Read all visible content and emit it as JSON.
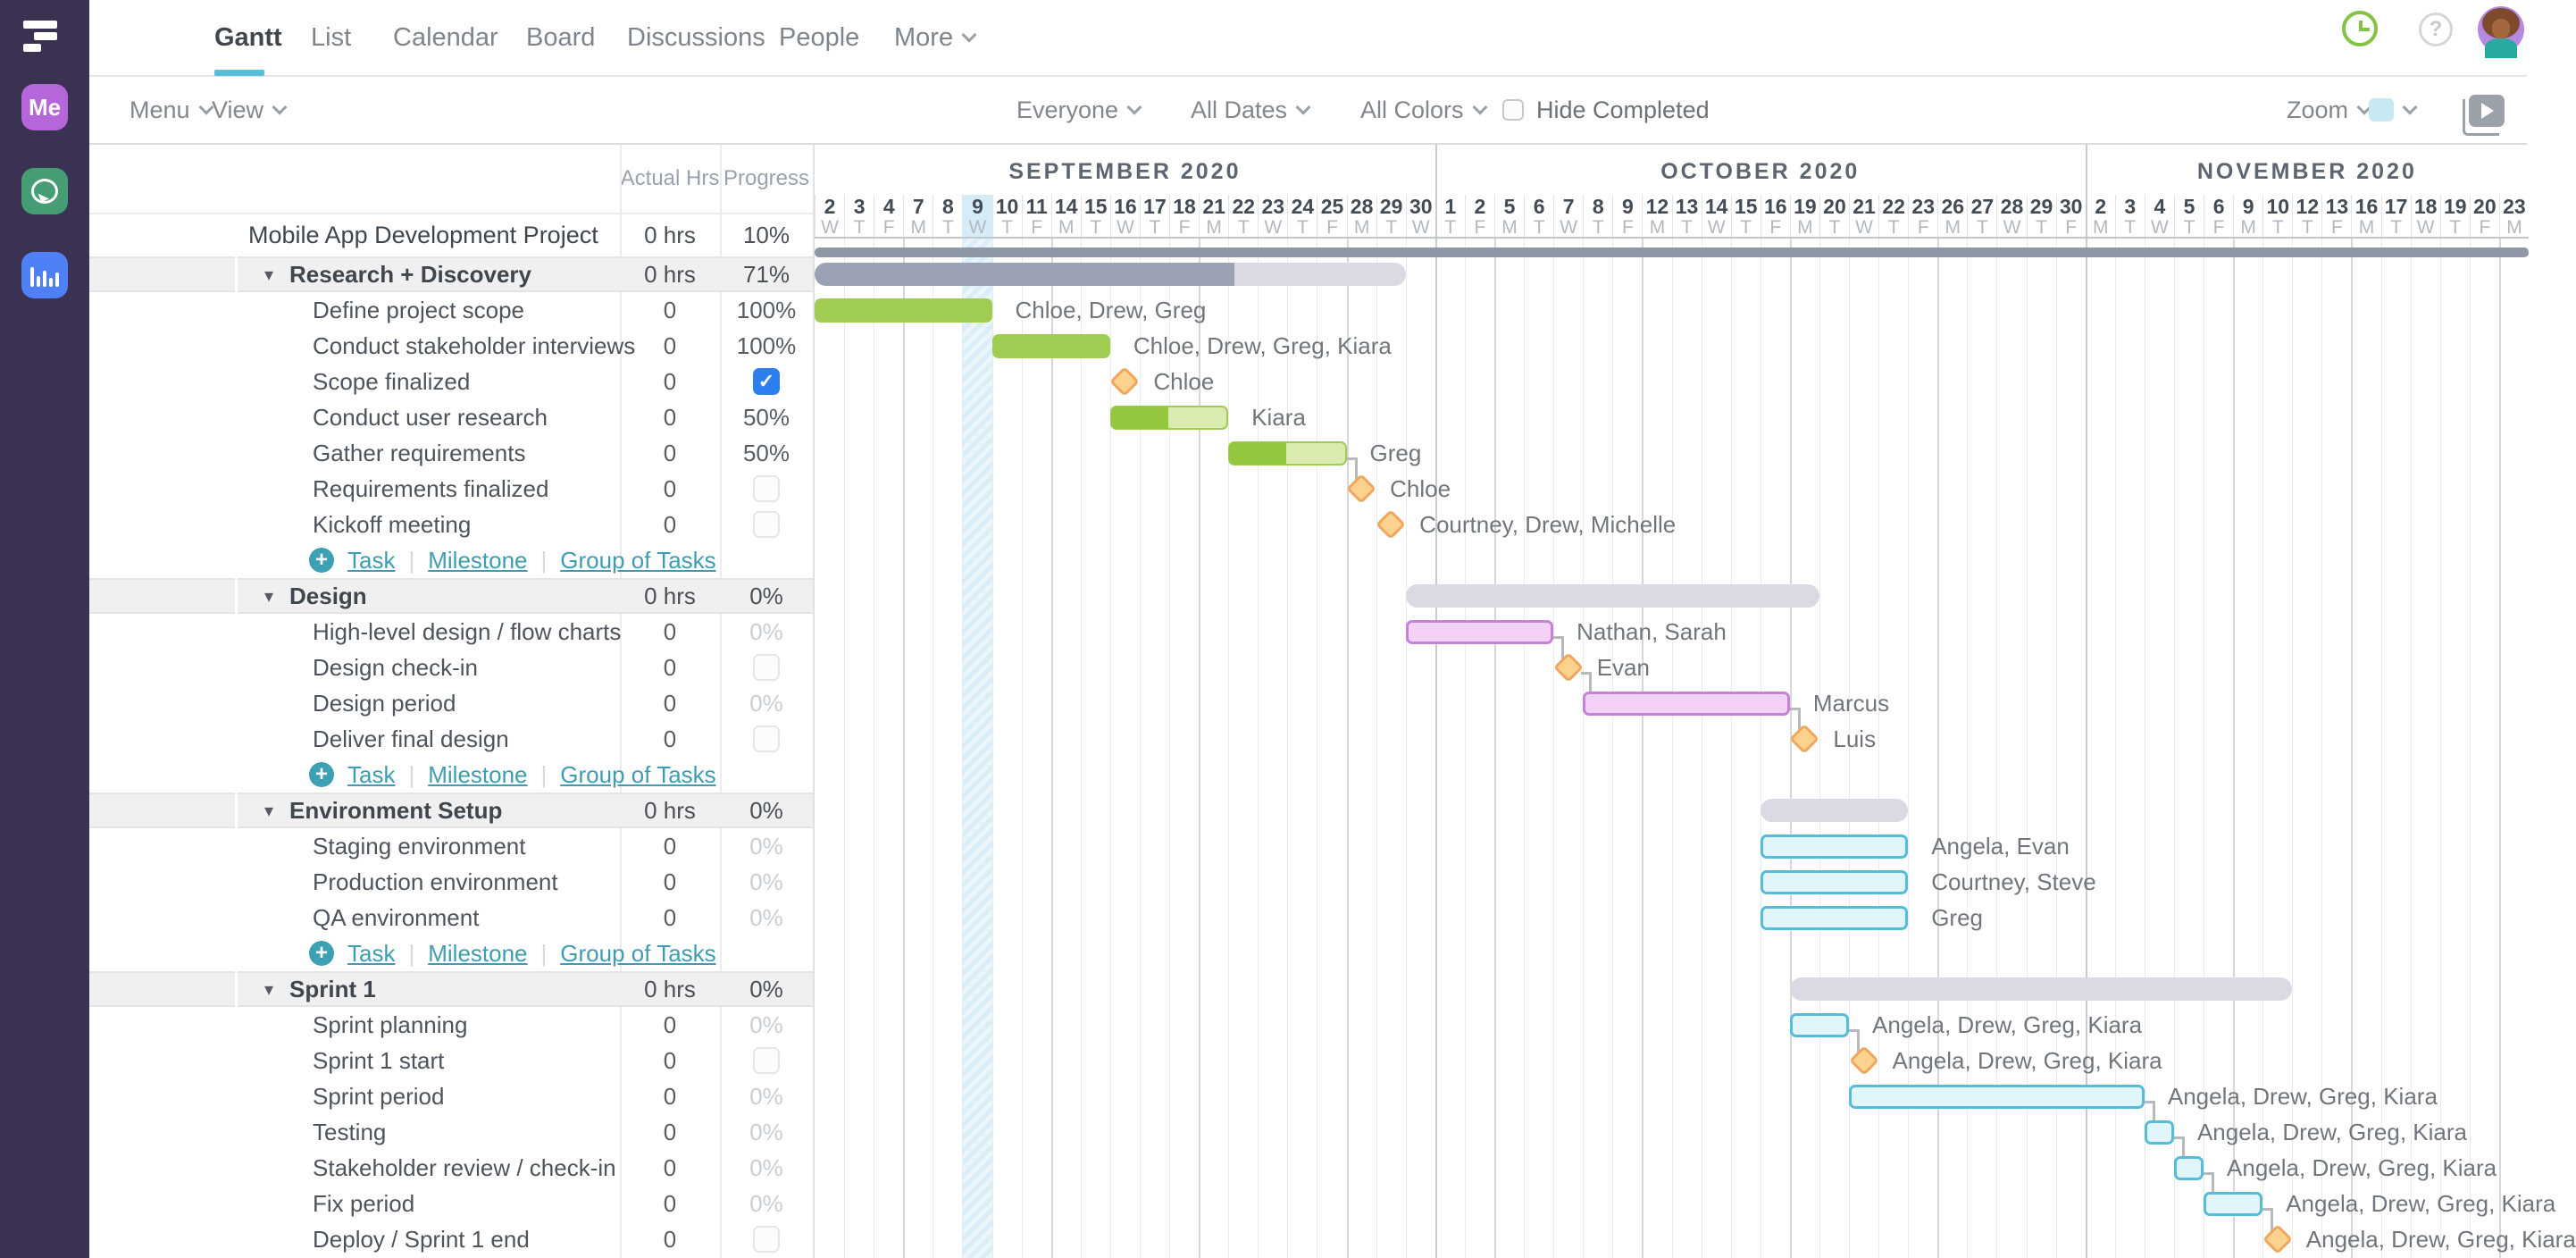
{
  "app": {
    "nav_tabs": [
      {
        "label": "Gantt",
        "active": true
      },
      {
        "label": "List",
        "active": false
      },
      {
        "label": "Calendar",
        "active": false
      },
      {
        "label": "Board",
        "active": false
      },
      {
        "label": "Discussions",
        "active": false
      },
      {
        "label": "People",
        "active": false
      },
      {
        "label": "More",
        "active": false,
        "chevron": true
      }
    ],
    "sidebar": {
      "me_label": "Me",
      "icons": [
        "teamgantt-logo",
        "me-button",
        "chat-icon",
        "bar-chart-icon"
      ]
    },
    "header_icons": [
      "clock-icon",
      "help-icon",
      "avatar"
    ]
  },
  "toolbar": {
    "menu_label": "Menu",
    "view_label": "View",
    "everyone_label": "Everyone",
    "all_dates_label": "All Dates",
    "all_colors_label": "All Colors",
    "hide_completed_label": "Hide Completed",
    "hide_completed_checked": false,
    "zoom_label": "Zoom",
    "zoom_swatch_color": "#c7e9f4"
  },
  "table": {
    "header": {
      "hours": "Actual Hrs",
      "progress": "Progress"
    },
    "add_links": [
      "Task",
      "Milestone",
      "Group of Tasks"
    ],
    "rows": [
      {
        "type": "project",
        "name": "Mobile App Development Project",
        "hrs": "0 hrs",
        "progress": "10%"
      },
      {
        "type": "group",
        "name": "Research + Discovery",
        "hrs": "0 hrs",
        "progress": "71%"
      },
      {
        "type": "task",
        "name": "Define project scope",
        "hrs": "0",
        "progress": "100%"
      },
      {
        "type": "task",
        "name": "Conduct stakeholder interviews",
        "hrs": "0",
        "progress": "100%"
      },
      {
        "type": "milestone",
        "name": "Scope finalized",
        "hrs": "0",
        "checked": true
      },
      {
        "type": "task",
        "name": "Conduct user research",
        "hrs": "0",
        "progress": "50%"
      },
      {
        "type": "task",
        "name": "Gather requirements",
        "hrs": "0",
        "progress": "50%"
      },
      {
        "type": "milestone",
        "name": "Requirements finalized",
        "hrs": "0",
        "checked": false
      },
      {
        "type": "milestone",
        "name": "Kickoff meeting",
        "hrs": "0",
        "checked": false
      },
      {
        "type": "add"
      },
      {
        "type": "group",
        "name": "Design",
        "hrs": "0 hrs",
        "progress": "0%"
      },
      {
        "type": "task",
        "name": "High-level design / flow charts",
        "hrs": "0",
        "progress": "0%",
        "muted": true
      },
      {
        "type": "milestone",
        "name": "Design check-in",
        "hrs": "0",
        "checked": false
      },
      {
        "type": "task",
        "name": "Design period",
        "hrs": "0",
        "progress": "0%",
        "muted": true
      },
      {
        "type": "milestone",
        "name": "Deliver final design",
        "hrs": "0",
        "checked": false
      },
      {
        "type": "add"
      },
      {
        "type": "group",
        "name": "Environment Setup",
        "hrs": "0 hrs",
        "progress": "0%"
      },
      {
        "type": "task",
        "name": "Staging environment",
        "hrs": "0",
        "progress": "0%",
        "muted": true
      },
      {
        "type": "task",
        "name": "Production environment",
        "hrs": "0",
        "progress": "0%",
        "muted": true
      },
      {
        "type": "task",
        "name": "QA environment",
        "hrs": "0",
        "progress": "0%",
        "muted": true
      },
      {
        "type": "add"
      },
      {
        "type": "group",
        "name": "Sprint 1",
        "hrs": "0 hrs",
        "progress": "0%"
      },
      {
        "type": "task",
        "name": "Sprint planning",
        "hrs": "0",
        "progress": "0%",
        "muted": true
      },
      {
        "type": "milestone",
        "name": "Sprint 1 start",
        "hrs": "0",
        "checked": false
      },
      {
        "type": "task",
        "name": "Sprint period",
        "hrs": "0",
        "progress": "0%",
        "muted": true
      },
      {
        "type": "task",
        "name": "Testing",
        "hrs": "0",
        "progress": "0%",
        "muted": true
      },
      {
        "type": "task",
        "name": "Stakeholder review / check-in",
        "hrs": "0",
        "progress": "0%",
        "muted": true
      },
      {
        "type": "task",
        "name": "Fix period",
        "hrs": "0",
        "progress": "0%",
        "muted": true
      },
      {
        "type": "milestone",
        "name": "Deploy / Sprint 1 end",
        "hrs": "0",
        "checked": false
      }
    ]
  },
  "calendar": {
    "months": [
      {
        "label": "SEPTEMBER 2020",
        "days": [
          {
            "n": "2",
            "d": "W"
          },
          {
            "n": "3",
            "d": "T"
          },
          {
            "n": "4",
            "d": "F"
          },
          {
            "n": "7",
            "d": "M"
          },
          {
            "n": "8",
            "d": "T"
          },
          {
            "n": "9",
            "d": "W",
            "today": true
          },
          {
            "n": "10",
            "d": "T"
          },
          {
            "n": "11",
            "d": "F"
          },
          {
            "n": "14",
            "d": "M"
          },
          {
            "n": "15",
            "d": "T"
          },
          {
            "n": "16",
            "d": "W"
          },
          {
            "n": "17",
            "d": "T"
          },
          {
            "n": "18",
            "d": "F"
          },
          {
            "n": "21",
            "d": "M"
          },
          {
            "n": "22",
            "d": "T"
          },
          {
            "n": "23",
            "d": "W"
          },
          {
            "n": "24",
            "d": "T"
          },
          {
            "n": "25",
            "d": "F"
          },
          {
            "n": "28",
            "d": "M"
          },
          {
            "n": "29",
            "d": "T"
          },
          {
            "n": "30",
            "d": "W"
          }
        ]
      },
      {
        "label": "OCTOBER 2020",
        "days": [
          {
            "n": "1",
            "d": "T"
          },
          {
            "n": "2",
            "d": "F"
          },
          {
            "n": "5",
            "d": "M"
          },
          {
            "n": "6",
            "d": "T"
          },
          {
            "n": "7",
            "d": "W"
          },
          {
            "n": "8",
            "d": "T"
          },
          {
            "n": "9",
            "d": "F"
          },
          {
            "n": "12",
            "d": "M"
          },
          {
            "n": "13",
            "d": "T"
          },
          {
            "n": "14",
            "d": "W"
          },
          {
            "n": "15",
            "d": "T"
          },
          {
            "n": "16",
            "d": "F"
          },
          {
            "n": "19",
            "d": "M"
          },
          {
            "n": "20",
            "d": "T"
          },
          {
            "n": "21",
            "d": "W"
          },
          {
            "n": "22",
            "d": "T"
          },
          {
            "n": "23",
            "d": "F"
          },
          {
            "n": "26",
            "d": "M"
          },
          {
            "n": "27",
            "d": "T"
          },
          {
            "n": "28",
            "d": "W"
          },
          {
            "n": "29",
            "d": "T"
          },
          {
            "n": "30",
            "d": "F"
          }
        ]
      },
      {
        "label": "NOVEMBER 2020",
        "days": [
          {
            "n": "2",
            "d": "M"
          },
          {
            "n": "3",
            "d": "T"
          },
          {
            "n": "4",
            "d": "W"
          },
          {
            "n": "5",
            "d": "T"
          },
          {
            "n": "6",
            "d": "F"
          },
          {
            "n": "9",
            "d": "M"
          },
          {
            "n": "10",
            "d": "T"
          },
          {
            "n": "12",
            "d": "T"
          },
          {
            "n": "13",
            "d": "F"
          },
          {
            "n": "16",
            "d": "M"
          },
          {
            "n": "17",
            "d": "T"
          },
          {
            "n": "18",
            "d": "W"
          },
          {
            "n": "19",
            "d": "T"
          },
          {
            "n": "20",
            "d": "F"
          },
          {
            "n": "23",
            "d": "M"
          }
        ]
      }
    ]
  },
  "gantt": {
    "colors": {
      "green_fill": "#95c73e",
      "green_light": "#d9ebae",
      "green_border": "#a2cb56",
      "green_solid": "#a0cc52",
      "purple_fill": "#f4d2f8",
      "purple_border": "#c583d7",
      "cyan_fill": "#e1f6fb",
      "cyan_border": "#57bcd8",
      "milestone_fill": "#fcd28f",
      "milestone_border": "#f1a65e",
      "group_fill": "#d9dae3",
      "group_done": "#9aa2b4",
      "project_bar": "#8e97a6",
      "today_highlight": "#d6edf8",
      "accent_teal": "#58bed9"
    },
    "bars": [
      {
        "row": 0,
        "kind": "project"
      },
      {
        "row": 1,
        "kind": "group",
        "start": 0,
        "end": 19,
        "frac": 0.71
      },
      {
        "row": 2,
        "kind": "bar",
        "scheme": "green",
        "start": 0,
        "end": 5,
        "frac": 1,
        "label": "Chloe, Drew, Greg"
      },
      {
        "row": 3,
        "kind": "bar",
        "scheme": "green",
        "start": 6,
        "end": 9,
        "frac": 1,
        "label": "Chloe, Drew, Greg, Kiara"
      },
      {
        "row": 4,
        "kind": "milestone",
        "col": 10,
        "label": "Chloe"
      },
      {
        "row": 5,
        "kind": "bar",
        "scheme": "green",
        "start": 10,
        "end": 13,
        "frac": 0.5,
        "label": "Kiara"
      },
      {
        "row": 6,
        "kind": "bar",
        "scheme": "green",
        "start": 14,
        "end": 17,
        "frac": 0.5,
        "label": "Greg"
      },
      {
        "row": 7,
        "kind": "milestone",
        "col": 18,
        "label": "Chloe"
      },
      {
        "row": 8,
        "kind": "milestone",
        "col": 19,
        "label": "Courtney, Drew, Michelle"
      },
      {
        "row": 10,
        "kind": "group",
        "start": 20,
        "end": 33,
        "frac": 0
      },
      {
        "row": 11,
        "kind": "bar",
        "scheme": "purple",
        "start": 20,
        "end": 24,
        "frac": 0,
        "label": "Nathan, Sarah"
      },
      {
        "row": 12,
        "kind": "milestone",
        "col": 25,
        "label": "Evan"
      },
      {
        "row": 13,
        "kind": "bar",
        "scheme": "purple",
        "start": 26,
        "end": 32,
        "frac": 0,
        "label": "Marcus"
      },
      {
        "row": 14,
        "kind": "milestone",
        "col": 33,
        "label": "Luis"
      },
      {
        "row": 16,
        "kind": "group",
        "start": 32,
        "end": 36,
        "frac": 0
      },
      {
        "row": 17,
        "kind": "bar",
        "scheme": "cyan",
        "start": 32,
        "end": 36,
        "frac": 0,
        "label": "Angela, Evan"
      },
      {
        "row": 18,
        "kind": "bar",
        "scheme": "cyan",
        "start": 32,
        "end": 36,
        "frac": 0,
        "label": "Courtney, Steve"
      },
      {
        "row": 19,
        "kind": "bar",
        "scheme": "cyan",
        "start": 32,
        "end": 36,
        "frac": 0,
        "label": "Greg"
      },
      {
        "row": 21,
        "kind": "group",
        "start": 33,
        "end": 49,
        "frac": 0
      },
      {
        "row": 22,
        "kind": "bar",
        "scheme": "cyan",
        "start": 33,
        "end": 34,
        "frac": 0,
        "label": "Angela, Drew, Greg, Kiara"
      },
      {
        "row": 23,
        "kind": "milestone",
        "col": 35,
        "label": "Angela, Drew, Greg, Kiara"
      },
      {
        "row": 24,
        "kind": "bar",
        "scheme": "cyan",
        "start": 35,
        "end": 44,
        "frac": 0,
        "label": "Angela, Drew, Greg, Kiara"
      },
      {
        "row": 25,
        "kind": "bar",
        "scheme": "cyan",
        "start": 45,
        "end": 45,
        "frac": 0,
        "label": "Angela, Drew, Greg, Kiara"
      },
      {
        "row": 26,
        "kind": "bar",
        "scheme": "cyan",
        "start": 46,
        "end": 46,
        "frac": 0,
        "label": "Angela, Drew, Greg, Kiara"
      },
      {
        "row": 27,
        "kind": "bar",
        "scheme": "cyan",
        "start": 47,
        "end": 48,
        "frac": 0,
        "label": "Angela, Drew, Greg, Kiara"
      },
      {
        "row": 28,
        "kind": "milestone",
        "col": 49,
        "label": "Angela, Drew, Greg, Kiara"
      }
    ],
    "connectors": [
      [
        6,
        7
      ],
      [
        11,
        12
      ],
      [
        12,
        13
      ],
      [
        13,
        14
      ],
      [
        22,
        23
      ],
      [
        24,
        25
      ],
      [
        25,
        26
      ],
      [
        26,
        27
      ],
      [
        27,
        28
      ]
    ]
  }
}
